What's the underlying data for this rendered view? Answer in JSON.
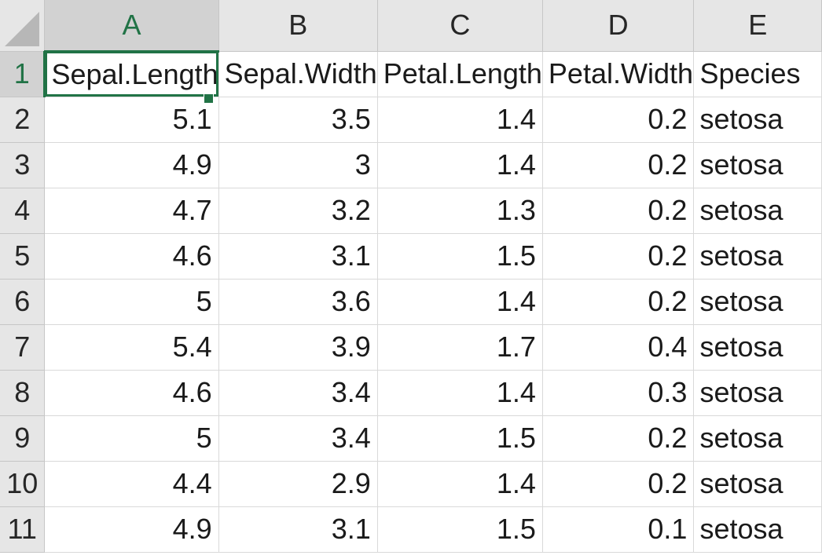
{
  "columns": [
    "A",
    "B",
    "C",
    "D",
    "E"
  ],
  "header_row": {
    "row_number": "1",
    "cells": [
      "Sepal.Length",
      "Sepal.Width",
      "Petal.Length",
      "Petal.Width",
      "Species"
    ]
  },
  "rows": [
    {
      "row_number": "2",
      "cells": [
        "5.1",
        "3.5",
        "1.4",
        "0.2",
        "setosa"
      ]
    },
    {
      "row_number": "3",
      "cells": [
        "4.9",
        "3",
        "1.4",
        "0.2",
        "setosa"
      ]
    },
    {
      "row_number": "4",
      "cells": [
        "4.7",
        "3.2",
        "1.3",
        "0.2",
        "setosa"
      ]
    },
    {
      "row_number": "5",
      "cells": [
        "4.6",
        "3.1",
        "1.5",
        "0.2",
        "setosa"
      ]
    },
    {
      "row_number": "6",
      "cells": [
        "5",
        "3.6",
        "1.4",
        "0.2",
        "setosa"
      ]
    },
    {
      "row_number": "7",
      "cells": [
        "5.4",
        "3.9",
        "1.7",
        "0.4",
        "setosa"
      ]
    },
    {
      "row_number": "8",
      "cells": [
        "4.6",
        "3.4",
        "1.4",
        "0.3",
        "setosa"
      ]
    },
    {
      "row_number": "9",
      "cells": [
        "5",
        "3.4",
        "1.5",
        "0.2",
        "setosa"
      ]
    },
    {
      "row_number": "10",
      "cells": [
        "4.4",
        "2.9",
        "1.4",
        "0.2",
        "setosa"
      ]
    },
    {
      "row_number": "11",
      "cells": [
        "4.9",
        "3.1",
        "1.5",
        "0.1",
        "setosa"
      ]
    }
  ],
  "selection": {
    "active_cell": "A1"
  },
  "colors": {
    "accent": "#217346",
    "header_bg": "#e6e6e6",
    "gridline": "#d9d9d9"
  }
}
